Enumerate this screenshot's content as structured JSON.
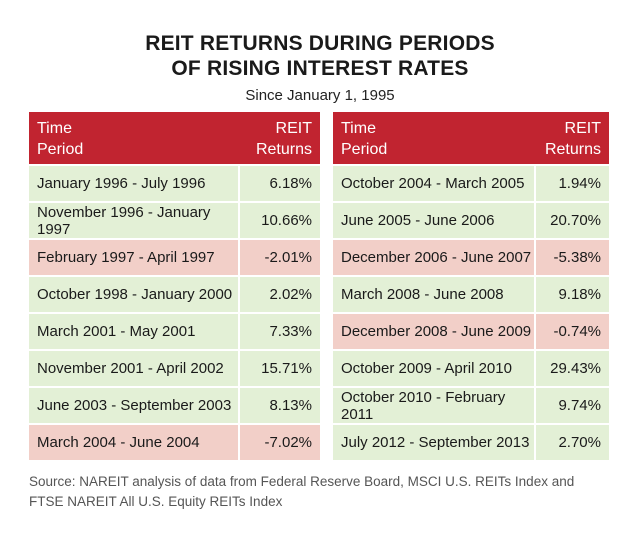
{
  "title_line1": "REIT RETURNS DURING PERIODS",
  "title_line2": "OF RISING INTEREST RATES",
  "subtitle": "Since January 1, 1995",
  "header": {
    "col1_line1": "Time",
    "col1_line2": "Period",
    "col2_line1": "REIT",
    "col2_line2": "Returns"
  },
  "source": "Source: NAREIT analysis of data from Federal Reserve Board, MSCI U.S. REITs Index and FTSE NAREIT All U.S. Equity REITs Index",
  "colors": {
    "header": "#c12430",
    "positive_row": "#e3f0d6",
    "negative_row": "#f2cfc8"
  },
  "chart_data": {
    "type": "table",
    "title": "REIT RETURNS DURING PERIODS OF RISING INTEREST RATES",
    "subtitle": "Since January 1, 1995",
    "columns": [
      "Time Period",
      "REIT Returns"
    ],
    "left_rows": [
      {
        "period": "January 1996 - July 1996",
        "return": "6.18%"
      },
      {
        "period": "November 1996 - January 1997",
        "return": "10.66%"
      },
      {
        "period": "February 1997 - April 1997",
        "return": "-2.01%"
      },
      {
        "period": "October 1998 - January 2000",
        "return": "2.02%"
      },
      {
        "period": "March 2001 - May 2001",
        "return": "7.33%"
      },
      {
        "period": "November 2001 - April 2002",
        "return": "15.71%"
      },
      {
        "period": "June 2003 - September 2003",
        "return": "8.13%"
      },
      {
        "period": "March 2004 - June 2004",
        "return": "-7.02%"
      }
    ],
    "right_rows": [
      {
        "period": "October 2004 - March 2005",
        "return": "1.94%"
      },
      {
        "period": "June 2005 - June 2006",
        "return": "20.70%"
      },
      {
        "period": "December 2006 - June 2007",
        "return": "-5.38%"
      },
      {
        "period": "March 2008 - June 2008",
        "return": "9.18%"
      },
      {
        "period": "December 2008 - June 2009",
        "return": "-0.74%"
      },
      {
        "period": "October 2009 - April 2010",
        "return": "29.43%"
      },
      {
        "period": "October 2010 - February 2011",
        "return": "9.74%"
      },
      {
        "period": "July 2012 - September 2013",
        "return": "2.70%"
      }
    ]
  }
}
